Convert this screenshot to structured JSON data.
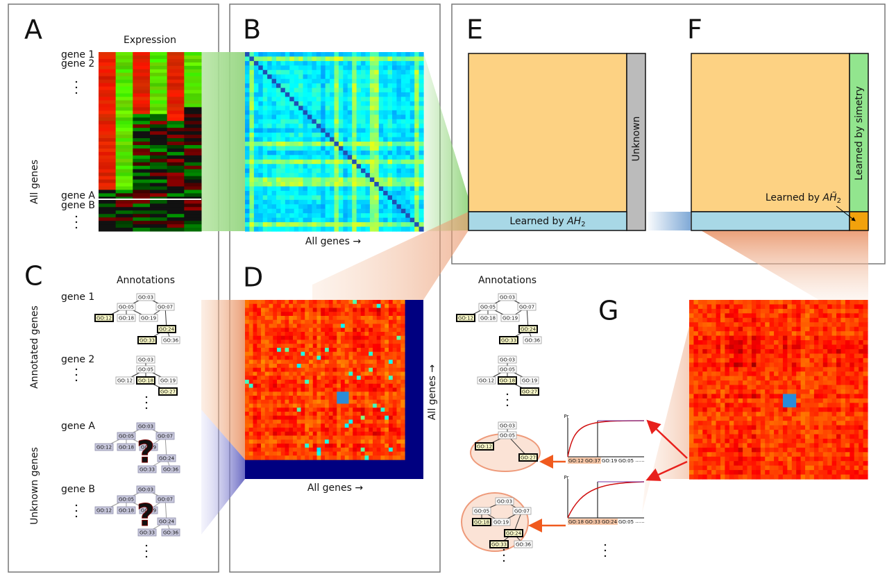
{
  "panel_labels": [
    "A",
    "B",
    "C",
    "D",
    "E",
    "F",
    "G"
  ],
  "panel_a": {
    "title": "Expression",
    "genes_top": [
      "gene 1",
      "gene 2"
    ],
    "genes_bottom": [
      "gene A",
      "gene B"
    ],
    "axis_label": "All genes"
  },
  "panel_b": {
    "axis_label": "All genes →"
  },
  "panel_c": {
    "title": "Annotations",
    "group_labels": [
      "Annotated genes",
      "Unknown genes"
    ],
    "trees": [
      {
        "gene": "gene 1",
        "nodes": [
          "GO:03",
          "GO:05",
          "GO:07",
          "GO:12",
          "GO:18",
          "GO:19",
          "GO:24",
          "GO:33",
          "GO:36"
        ]
      },
      {
        "gene": "gene 2",
        "nodes": [
          "GO:03",
          "GO:05",
          "GO:12",
          "GO:18",
          "GO:19",
          "GO:27"
        ]
      },
      {
        "gene": "gene A",
        "nodes": [
          "GO:03",
          "GO:05",
          "GO:07",
          "GO:12",
          "GO:18",
          "GO:19",
          "GO:24",
          "GO:33",
          "GO:36"
        ]
      },
      {
        "gene": "gene B",
        "nodes": [
          "GO:03",
          "GO:05",
          "GO:07",
          "GO:12",
          "GO:18",
          "GO:19",
          "GO:24",
          "GO:33",
          "GO:36"
        ]
      }
    ]
  },
  "panel_d": {
    "x_label": "All genes →",
    "y_label": "All genes →"
  },
  "panel_e": {
    "unknown": "Unknown",
    "learned": {
      "prefix": "Learned by ",
      "var": "AH",
      "sub": "2"
    }
  },
  "panel_f": {
    "symmetry": "Learned by simetry",
    "learned": {
      "prefix": "Learned by ",
      "var": "AH̃",
      "sub": "2"
    }
  },
  "panel_g": {
    "title": "Annotations",
    "trees": [
      {
        "nodes": [
          "GO:03",
          "GO:05",
          "GO:07",
          "GO:12",
          "GO:18",
          "GO:19",
          "GO:24",
          "GO:33",
          "GO:36"
        ]
      },
      {
        "nodes": [
          "GO:03",
          "GO:05",
          "GO:12",
          "GO:18",
          "GO:19",
          "GO:27"
        ]
      },
      {
        "nodes": [
          "GO:03",
          "GO:05",
          "GO:12",
          "GO:27"
        ]
      },
      {
        "nodes": [
          "GO:03",
          "GO:05",
          "GO:07",
          "GO:18",
          "GO:19",
          "GO:24",
          "GO:33",
          "GO:36"
        ]
      }
    ],
    "charts": [
      {
        "y_label": "Pr",
        "x_labels": [
          "GO:12",
          "GO:37",
          "GO:19",
          "GO:05"
        ],
        "more": "......"
      },
      {
        "y_label": "Pr",
        "x_labels": [
          "GO:18",
          "GO:33",
          "GO:24",
          "GO:05"
        ],
        "more": "......"
      }
    ]
  }
}
